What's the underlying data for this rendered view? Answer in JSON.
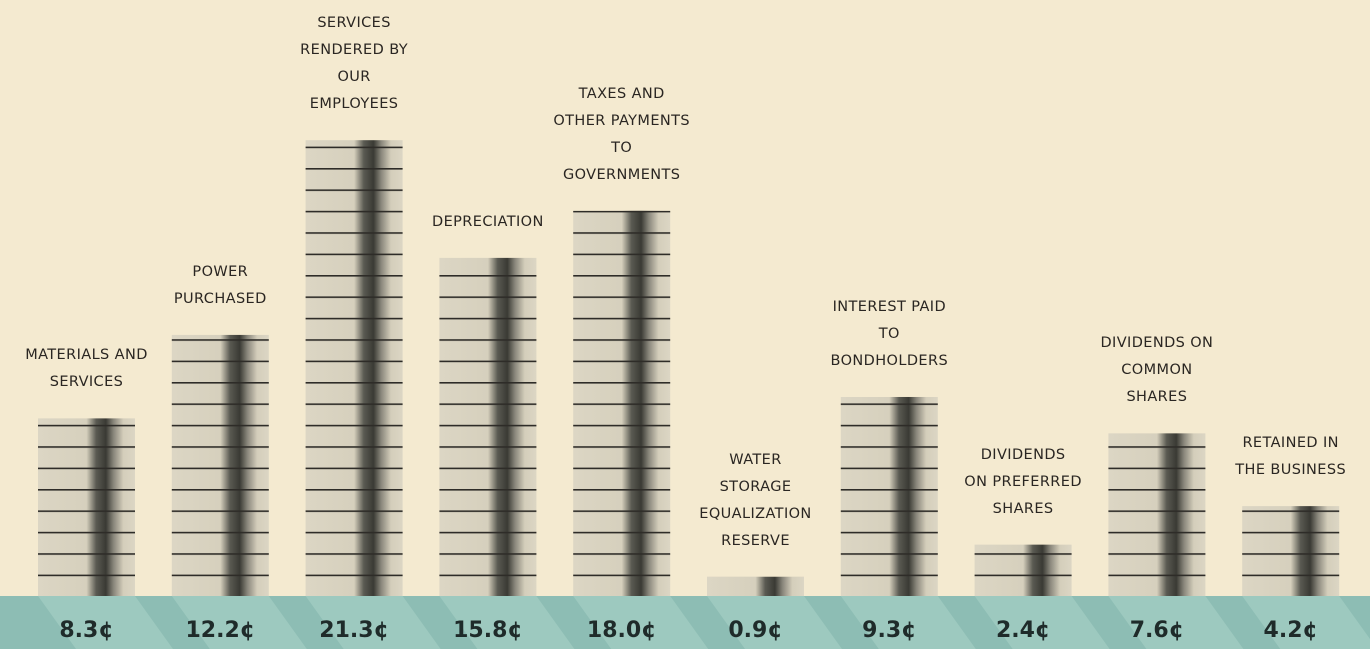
{
  "chart_data": {
    "type": "bar",
    "categories": [
      "MATERIALS AND\nSERVICES",
      "POWER\nPURCHASED",
      "SERVICES\nRENDERED BY\nOUR\nEMPLOYEES",
      "DEPRECIATION",
      "TAXES AND\nOTHER PAYMENTS\nTO\nGOVERNMENTS",
      "WATER\nSTORAGE\nEQUALIZATION\nRESERVE",
      "INTEREST PAID\nTO\nBONDHOLDERS",
      "DIVIDENDS\nON PREFERRED\nSHARES",
      "DIVIDENDS ON\nCOMMON\nSHARES",
      "RETAINED IN\nTHE BUSINESS"
    ],
    "values": [
      8.3,
      12.2,
      21.3,
      15.8,
      18.0,
      0.9,
      9.3,
      2.4,
      7.6,
      4.2
    ],
    "value_labels": [
      "8.3¢",
      "12.2¢",
      "21.3¢",
      "15.8¢",
      "18.0¢",
      "0.9¢",
      "9.3¢",
      "2.4¢",
      "7.6¢",
      "4.2¢"
    ],
    "color": "#d9d3c1"
  }
}
